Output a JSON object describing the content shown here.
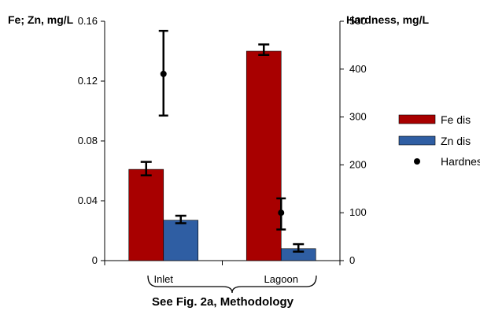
{
  "chart_data": {
    "type": "bar",
    "categories": [
      "Inlet",
      "Lagoon"
    ],
    "left_axis": {
      "label": "Fe; Zn, mg/L",
      "ylim": [
        0,
        0.16
      ],
      "ticks": [
        0,
        0.04,
        0.08,
        0.12,
        0.16
      ],
      "tick_labels": [
        "0",
        "0.04",
        "0.08",
        "0.12",
        "0.16"
      ]
    },
    "right_axis": {
      "label": "Hardness, mg/L",
      "ylim": [
        0,
        500
      ],
      "ticks": [
        0,
        100,
        200,
        300,
        400,
        500
      ],
      "tick_labels": [
        "0",
        "100",
        "200",
        "300",
        "400",
        "500"
      ]
    },
    "series": [
      {
        "name": "Fe dis",
        "kind": "bar",
        "axis": "left",
        "color": "#a80000",
        "values": [
          0.061,
          0.14
        ],
        "error_low": [
          0.057,
          0.1375
        ],
        "error_high": [
          0.066,
          0.1445
        ]
      },
      {
        "name": "Zn dis",
        "kind": "bar",
        "axis": "left",
        "color": "#2f5ea3",
        "values": [
          0.027,
          0.008
        ],
        "error_low": [
          0.025,
          0.006
        ],
        "error_high": [
          0.03,
          0.011
        ]
      },
      {
        "name": "Hardness",
        "kind": "point",
        "axis": "right",
        "color": "#000000",
        "values": [
          390,
          100
        ],
        "error_low": [
          303,
          65
        ],
        "error_high": [
          480,
          130
        ]
      }
    ],
    "legend_position": "right",
    "grid": false,
    "annotation": "See Fig. 2a, Methodology"
  }
}
